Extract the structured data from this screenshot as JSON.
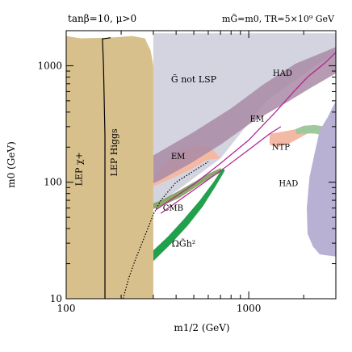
{
  "chart_data": {
    "type": "area",
    "header_left": "tanβ=10,  μ>0",
    "header_right": "mG̃=m0,  TR=5×10⁹ GeV",
    "xlabel": "m1/2 (GeV)",
    "ylabel": "m0 (GeV)",
    "x_scale": "log",
    "y_scale": "log",
    "xlim": [
      100,
      3000
    ],
    "ylim": [
      10,
      2000
    ],
    "x_ticks": [
      {
        "value": 100,
        "label": "100"
      },
      {
        "value": 1000,
        "label": "1000"
      }
    ],
    "y_ticks": [
      {
        "value": 10,
        "label": "10"
      },
      {
        "value": 100,
        "label": "100"
      },
      {
        "value": 1000,
        "label": "1000"
      }
    ],
    "colors": {
      "lep": "#d8c08c",
      "not_lsp": "#d4d4e0",
      "had": "#b9b1d4",
      "had_upper": "#a98aa6",
      "em": "#f4b9a4",
      "ntp": "#9fc89c",
      "cmb": "#8aa86a",
      "omega": "#22a04c",
      "line": "#000000",
      "magenta": "#b0208c"
    },
    "regions": [
      {
        "name": "not-lsp",
        "label": "G̃ not LSP",
        "color": "not_lsp",
        "points": [
          [
            300,
            1900
          ],
          [
            3000,
            1900
          ],
          [
            3000,
            1320
          ],
          [
            1250,
            500
          ],
          [
            700,
            160
          ],
          [
            300,
            60
          ]
        ]
      },
      {
        "name": "em-lower",
        "label": "",
        "color": "em",
        "points": [
          [
            300,
            105
          ],
          [
            340,
            140
          ],
          [
            420,
            185
          ],
          [
            520,
            210
          ],
          [
            620,
            200
          ],
          [
            700,
            160
          ],
          [
            590,
            155
          ],
          [
            480,
            128
          ],
          [
            400,
            112
          ],
          [
            330,
            98
          ],
          [
            300,
            92
          ]
        ]
      },
      {
        "name": "had-upper",
        "label": "HAD",
        "color": "had_upper",
        "points": [
          [
            300,
            170
          ],
          [
            500,
            270
          ],
          [
            800,
            430
          ],
          [
            1200,
            690
          ],
          [
            1800,
            1040
          ],
          [
            3000,
            1450
          ],
          [
            3000,
            860
          ],
          [
            2200,
            650
          ],
          [
            1600,
            480
          ],
          [
            1050,
            330
          ],
          [
            700,
            210
          ],
          [
            480,
            145
          ],
          [
            330,
            105
          ],
          [
            300,
            98
          ]
        ]
      },
      {
        "name": "em-upper",
        "label": "EM",
        "color": "em",
        "points": [
          [
            1300,
            260
          ],
          [
            1500,
            270
          ],
          [
            1800,
            285
          ],
          [
            2000,
            290
          ],
          [
            2200,
            300
          ],
          [
            2400,
            300
          ],
          [
            2400,
            282
          ],
          [
            2100,
            262
          ],
          [
            1850,
            235
          ],
          [
            1620,
            210
          ],
          [
            1420,
            200
          ],
          [
            1300,
            210
          ]
        ]
      },
      {
        "name": "ntp-band",
        "label": "NTP",
        "color": "ntp",
        "points": [
          [
            1800,
            285
          ],
          [
            2000,
            305
          ],
          [
            2300,
            310
          ],
          [
            2600,
            300
          ],
          [
            3000,
            270
          ],
          [
            3000,
            225
          ],
          [
            2600,
            250
          ],
          [
            2300,
            262
          ],
          [
            2050,
            262
          ],
          [
            1820,
            258
          ]
        ]
      },
      {
        "name": "had-right",
        "label": "HAD",
        "color": "had",
        "points": [
          [
            2450,
            280
          ],
          [
            2700,
            360
          ],
          [
            3000,
            500
          ],
          [
            3000,
            23
          ],
          [
            2450,
            24
          ],
          [
            2250,
            28
          ],
          [
            2100,
            36
          ],
          [
            2080,
            60
          ],
          [
            2150,
            110
          ],
          [
            2300,
            180
          ]
        ]
      },
      {
        "name": "cmb-band",
        "label": "CMB",
        "color": "cmb",
        "points": [
          [
            300,
            66
          ],
          [
            330,
            70
          ],
          [
            400,
            82
          ],
          [
            500,
            100
          ],
          [
            600,
            118
          ],
          [
            700,
            132
          ],
          [
            720,
            124
          ],
          [
            620,
            110
          ],
          [
            520,
            92
          ],
          [
            420,
            74
          ],
          [
            330,
            62
          ],
          [
            300,
            59
          ]
        ]
      },
      {
        "name": "omega-band",
        "label": "Ωh²",
        "color": "omega",
        "points": [
          [
            300,
            26
          ],
          [
            360,
            34
          ],
          [
            440,
            48
          ],
          [
            540,
            70
          ],
          [
            640,
            100
          ],
          [
            720,
            132
          ],
          [
            740,
            126
          ],
          [
            660,
            93
          ],
          [
            560,
            62
          ],
          [
            460,
            42
          ],
          [
            370,
            29
          ],
          [
            300,
            21
          ]
        ]
      },
      {
        "name": "lep-region",
        "label": "LEP χ+",
        "color": "lep",
        "points": [
          [
            100,
            10
          ],
          [
            100,
            1800
          ],
          [
            120,
            1720
          ],
          [
            170,
            1740
          ],
          [
            230,
            1800
          ],
          [
            270,
            1720
          ],
          [
            290,
            1350
          ],
          [
            300,
            1000
          ],
          [
            300,
            10
          ]
        ]
      }
    ],
    "lines": [
      {
        "name": "lep-higgs-line",
        "color": "line",
        "dash": "",
        "points": [
          [
            163,
            10
          ],
          [
            163,
            250
          ],
          [
            160,
            1000
          ],
          [
            158,
            1700
          ],
          [
            175,
            1740
          ]
        ]
      },
      {
        "name": "dotted-line",
        "color": "line",
        "dash": "1.5,2",
        "points": [
          [
            205,
            10
          ],
          [
            220,
            15
          ],
          [
            240,
            22
          ],
          [
            260,
            30
          ],
          [
            280,
            40
          ],
          [
            300,
            53
          ],
          [
            330,
            70
          ],
          [
            400,
            100
          ],
          [
            500,
            125
          ],
          [
            600,
            150
          ]
        ]
      },
      {
        "name": "magenta-line-1",
        "color": "magenta",
        "dash": "",
        "points": [
          [
            310,
            58
          ],
          [
            500,
            96
          ],
          [
            700,
            145
          ],
          [
            1000,
            230
          ],
          [
            1400,
            400
          ],
          [
            1800,
            620
          ],
          [
            2100,
            800
          ],
          [
            2600,
            1050
          ],
          [
            3000,
            1300
          ]
        ]
      },
      {
        "name": "magenta-line-2",
        "color": "magenta",
        "dash": "",
        "points": [
          [
            330,
            54
          ],
          [
            500,
            86
          ],
          [
            700,
            125
          ],
          [
            1000,
            190
          ],
          [
            1300,
            260
          ],
          [
            1500,
            300
          ]
        ]
      }
    ],
    "labels": [
      {
        "name": "label-lep-chargino",
        "text": "LEP χ+",
        "x": 122,
        "y": 130,
        "rotate": -90,
        "size": 11
      },
      {
        "name": "label-lep-higgs",
        "text": "LEP Higgs",
        "x": 190,
        "y": 180,
        "rotate": -90,
        "size": 11
      },
      {
        "name": "label-not-lsp",
        "text": "G̃ not LSP",
        "x": 500,
        "y": 720,
        "rotate": 0,
        "size": 11
      },
      {
        "name": "label-had-upper",
        "text": "HAD",
        "x": 1530,
        "y": 820,
        "rotate": 0,
        "size": 10
      },
      {
        "name": "label-em-upper",
        "text": "EM",
        "x": 1110,
        "y": 332,
        "rotate": 0,
        "size": 10
      },
      {
        "name": "label-ntp",
        "text": "NTP",
        "x": 1500,
        "y": 190,
        "rotate": 0,
        "size": 10
      },
      {
        "name": "label-em-lower",
        "text": "EM",
        "x": 410,
        "y": 158,
        "rotate": 0,
        "size": 10
      },
      {
        "name": "label-had-right",
        "text": "HAD",
        "x": 1650,
        "y": 93,
        "rotate": 0,
        "size": 10
      },
      {
        "name": "label-cmb",
        "text": "CMB",
        "x": 385,
        "y": 57,
        "rotate": 0,
        "size": 10
      },
      {
        "name": "label-omega",
        "text": "ΩG̃h²",
        "x": 440,
        "y": 28,
        "rotate": 0,
        "size": 11
      }
    ]
  }
}
